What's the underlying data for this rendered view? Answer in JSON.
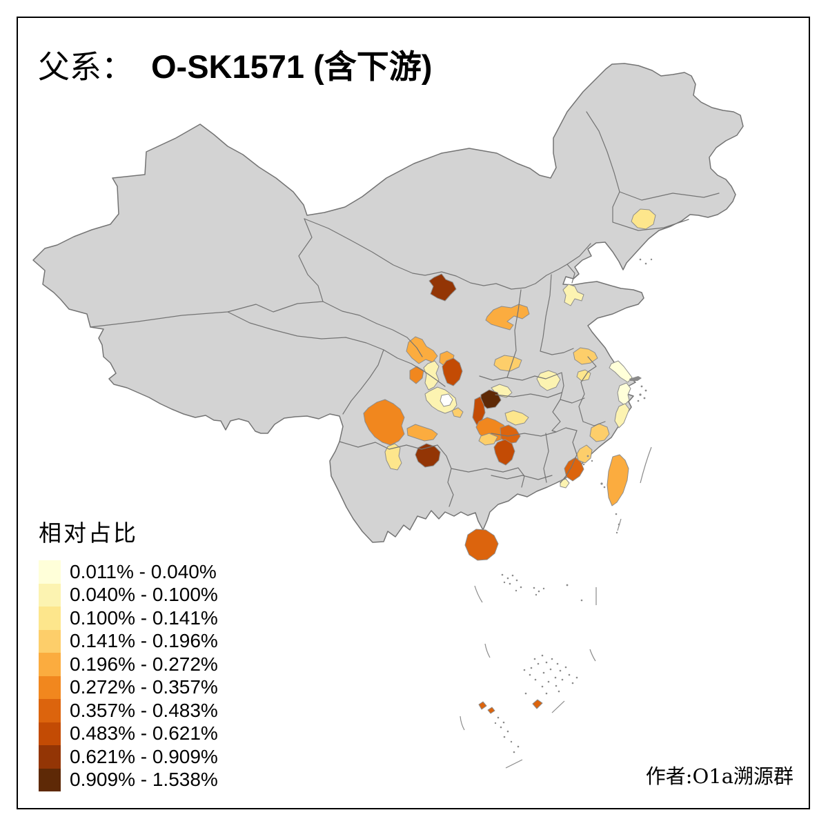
{
  "title": {
    "prefix": "父系：",
    "main": "O-SK1571 (含下游)"
  },
  "attribution": "作者:O1a溯源群",
  "legend": {
    "title": "相对占比",
    "classes": [
      {
        "label": "0.011% - 0.040%",
        "color": "#FFFFD9"
      },
      {
        "label": "0.040% - 0.100%",
        "color": "#FCF3B1"
      },
      {
        "label": "0.100% - 0.141%",
        "color": "#FDE68C"
      },
      {
        "label": "0.141% - 0.196%",
        "color": "#FDCE6A"
      },
      {
        "label": "0.196% - 0.272%",
        "color": "#FBAC3F"
      },
      {
        "label": "0.272% - 0.357%",
        "color": "#F1871E"
      },
      {
        "label": "0.357% - 0.483%",
        "color": "#DC640D"
      },
      {
        "label": "0.483% - 0.621%",
        "color": "#C34B04"
      },
      {
        "label": "0.621% - 0.909%",
        "color": "#933505"
      },
      {
        "label": "0.909% - 1.538%",
        "color": "#5E2906"
      }
    ]
  },
  "map": {
    "background": "#FFFFFF",
    "base_fill": "#D3D3D3",
    "border_color": "#737373",
    "region_border_color": "#8C8C8C",
    "no_data_fill": "#FFFFFF",
    "regions": [
      {
        "c": 3,
        "p": "918,312 928,303 941,304 950,312 947,325 936,332 924,330 915,321"
      },
      {
        "c": 2,
        "p": "816,420 824,412 833,415 837,423 846,427 843,436 833,433 827,443 818,438 820,428"
      },
      {
        "c": 5,
        "p": "706,459 715,449 727,444 741,446 752,441 764,445 767,455 757,462 745,458 735,466 744,471 739,478 725,474 712,470 704,464"
      },
      {
        "c": 9,
        "p": "629,402 640,397 646,405 656,409 661,419 653,427 645,436 634,432 624,426 628,415 622,407"
      },
      {
        "c": 4,
        "p": "718,521 731,515 744,517 756,522 752,532 739,538 725,536 716,529"
      },
      {
        "c": 2,
        "p": "783,541 795,537 806,541 812,550 806,561 793,566 783,559 778,549"
      },
      {
        "c": 4,
        "p": "831,511 841,504 853,506 862,511 866,519 856,526 843,528 833,521"
      },
      {
        "c": 3,
        "p": "838,539 848,536 856,541 853,550 843,552 836,546"
      },
      {
        "c": 5,
        "p": "592,496 602,488 612,492 618,502 628,508 634,516 627,525 617,521 607,527 597,519 589,509"
      },
      {
        "c": 6,
        "p": "594,537 604,531 614,537 612,548 603,556 594,549"
      },
      {
        "c": 5,
        "p": "638,513 648,509 658,515 656,525 645,531 637,525"
      },
      {
        "c": 8,
        "p": "647,523 657,519 666,526 670,538 666,550 657,559 648,555 643,542 641,531"
      },
      {
        "c": 2,
        "p": "620,527 630,523 636,531 632,541 636,551 629,561 621,565 616,555 618,543 614,533"
      },
      {
        "c": 2,
        "p": "622,567 634,561 645,565 653,571 660,577 662,587 656,595 645,599 635,595 626,589 618,580 616,571"
      },
      {
        "c": 0,
        "p": "640,573 650,571 656,579 652,587 643,589 638,581"
      },
      {
        "c": 4,
        "p": "655,595 664,591 671,597 667,605 658,603"
      },
      {
        "c": 2,
        "p": "712,562 724,557 736,561 742,569 734,576 721,573"
      },
      {
        "c": 3,
        "p": "732,599 744,595 757,599 766,605 760,613 747,616 735,610"
      },
      {
        "c": 10,
        "p": "697,572 709,565 721,569 726,580 718,590 706,592 697,584"
      },
      {
        "c": 8,
        "p": "688,579 696,575 701,586 703,598 698,610 691,616 685,605 687,591"
      },
      {
        "c": 6,
        "p": "694,611 706,605 718,609 730,616 736,626 729,636 717,640 704,637 695,629 690,619"
      },
      {
        "c": 4,
        "p": "697,632 709,628 721,633 716,643 703,645 694,639"
      },
      {
        "c": 7,
        "p": "725,620 737,616 748,622 754,632 748,641 735,643 726,635"
      },
      {
        "c": 8,
        "p": "721,641 732,637 742,643 746,654 742,666 733,674 723,669 718,657 716,648"
      },
      {
        "c": 6,
        "p": "534,591 546,583 558,579 570,585 580,593 586,605 582,617 586,629 578,639 566,645 554,641 543,633 535,623 529,611 527,599"
      },
      {
        "c": 3,
        "p": "562,647 572,643 580,649 578,661 582,671 576,681 566,679 560,667 558,655"
      },
      {
        "c": 5,
        "p": "590,621 602,615 614,619 626,623 634,629 628,637 615,639 603,635 591,631"
      },
      {
        "c": 9,
        "p": "606,649 618,643 630,647 638,655 636,667 628,675 616,677 606,669 602,659"
      },
      {
        "c": 1,
        "p": "886,527 896,523 904,531 910,539 916,547 910,554 899,547 891,539 883,533"
      },
      {
        "c": 1,
        "p": "898,559 908,555 914,563 910,572 912,580 905,587 897,581 895,569"
      },
      {
        "c": 2,
        "p": "897,589 906,585 912,593 908,603 904,613 897,620 891,610 893,598"
      },
      {
        "c": 4,
        "p": "857,620 868,614 880,619 883,629 876,638 864,640 855,632"
      },
      {
        "c": 4,
        "p": "840,651 850,645 858,652 856,664 848,671 838,667 836,658"
      },
      {
        "c": 7,
        "p": "824,669 834,663 842,670 846,680 840,690 830,697 821,691 818,679"
      },
      {
        "c": 2,
        "p": "812,697 820,694 825,700 820,707 812,705"
      },
      {
        "c": 7,
        "p": "678,775 690,767 704,768 716,776 722,788 717,802 706,811 692,812 680,804 674,790"
      },
      {
        "c": 5,
        "p": "888,662 898,659 906,667 911,679 909,696 903,714 894,728 887,733 882,721 880,703 882,683"
      },
      {
        "c": 7,
        "p": "772,1020 779,1014 786,1019 778,1027"
      },
      {
        "c": 7,
        "p": "694,1021 700,1017 705,1023 698,1028"
      },
      {
        "c": 7,
        "p": "707,1029 713,1025 717,1030 711,1034"
      }
    ]
  }
}
